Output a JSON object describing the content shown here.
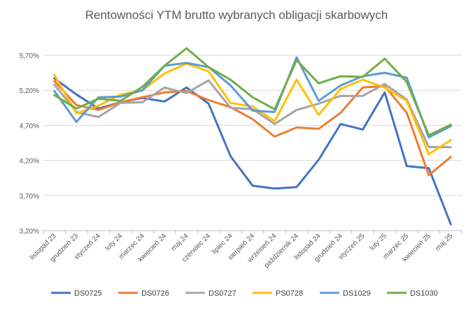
{
  "chart_data": {
    "type": "line",
    "title": "Rentowności YTM brutto wybranych obligacji skarbowych",
    "xlabel": "",
    "ylabel": "",
    "categories": [
      "listopad 23",
      "grudzień 23",
      "styczeń 24",
      "luty 24",
      "marzec 24",
      "kwiecień 24",
      "maj 24",
      "czerwiec 24",
      "lipiec 24",
      "sierpień 24",
      "wrzesień 24",
      "październik 24",
      "listopad 24",
      "grudzień 24",
      "styczeń 25",
      "luty 25",
      "marzec 25",
      "kwiecień 25",
      "maj 25"
    ],
    "yticks": [
      "3,20%",
      "3,70%",
      "4,20%",
      "4,70%",
      "5,20%",
      "5,70%"
    ],
    "ylim": [
      3.2,
      5.95
    ],
    "grid": "horizontal",
    "legend_position": "bottom",
    "series": [
      {
        "name": "DS0725",
        "color": "#4472C4",
        "values": [
          5.37,
          5.14,
          4.94,
          5.03,
          5.09,
          5.04,
          5.24,
          5.01,
          4.26,
          3.84,
          3.8,
          3.82,
          4.21,
          4.72,
          4.64,
          5.17,
          4.12,
          4.09,
          3.29
        ]
      },
      {
        "name": "DS0726",
        "color": "#ED7D31",
        "values": [
          5.33,
          4.99,
          4.92,
          5.03,
          5.1,
          5.17,
          5.19,
          5.06,
          4.96,
          4.79,
          4.54,
          4.67,
          4.65,
          4.88,
          5.24,
          5.26,
          4.88,
          3.99,
          4.25
        ]
      },
      {
        "name": "DS0727",
        "color": "#A5A5A5",
        "values": [
          5.28,
          4.89,
          4.82,
          5.02,
          5.03,
          5.24,
          5.16,
          5.34,
          4.95,
          4.93,
          4.72,
          4.92,
          5.01,
          5.12,
          5.12,
          5.29,
          5.07,
          4.39,
          4.39
        ]
      },
      {
        "name": "PS0728",
        "color": "#FFC000",
        "values": [
          5.42,
          4.87,
          4.98,
          5.14,
          5.2,
          5.44,
          5.58,
          5.47,
          5.02,
          4.97,
          4.76,
          5.35,
          4.85,
          5.22,
          5.35,
          5.24,
          5.05,
          4.29,
          4.49
        ]
      },
      {
        "name": "DS1029",
        "color": "#5B9BD5",
        "values": [
          5.19,
          4.75,
          5.1,
          5.11,
          5.2,
          5.55,
          5.59,
          5.53,
          5.27,
          4.91,
          4.89,
          5.67,
          5.05,
          5.27,
          5.4,
          5.45,
          5.38,
          4.53,
          4.69
        ]
      },
      {
        "name": "DS1030",
        "color": "#70AD47",
        "values": [
          5.13,
          4.94,
          5.08,
          5.05,
          5.25,
          5.55,
          5.8,
          5.53,
          5.35,
          5.1,
          4.93,
          5.63,
          5.3,
          5.4,
          5.39,
          5.65,
          5.32,
          4.56,
          4.71
        ]
      }
    ]
  }
}
